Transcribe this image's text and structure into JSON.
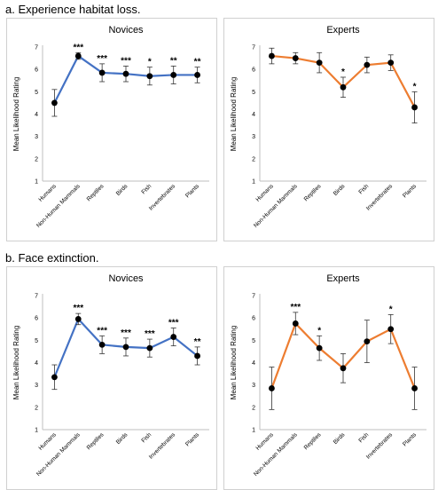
{
  "section_titles": [
    "a. Experience habitat loss.",
    "b. Face extinction."
  ],
  "chart_data": [
    {
      "type": "line",
      "title": "Novices",
      "ylabel": "Mean Likelihood Rating",
      "ylim": [
        1,
        7
      ],
      "yticks": [
        1,
        2,
        3,
        4,
        5,
        6,
        7
      ],
      "categories": [
        "Humans",
        "Non-Human Mammals",
        "Reptiles",
        "Birds",
        "Fish",
        "Invertebrates",
        "Plants"
      ],
      "values": [
        4.5,
        6.6,
        5.85,
        5.8,
        5.7,
        5.75,
        5.75
      ],
      "err_low": [
        3.9,
        6.45,
        5.45,
        5.45,
        5.3,
        5.35,
        5.4
      ],
      "err_high": [
        5.1,
        6.75,
        6.25,
        6.15,
        6.1,
        6.15,
        6.1
      ],
      "significance": [
        "",
        "***",
        "***",
        "***",
        "*",
        "**",
        "**"
      ],
      "line_color": "#4472C4"
    },
    {
      "type": "line",
      "title": "Experts",
      "ylabel": "Mean Likelihood Rating",
      "ylim": [
        1,
        7
      ],
      "yticks": [
        1,
        2,
        3,
        4,
        5,
        6,
        7
      ],
      "categories": [
        "Humans",
        "Non-Human Mammals",
        "Reptiles",
        "Birds",
        "Fish",
        "Invertebrates",
        "Plants"
      ],
      "values": [
        6.6,
        6.5,
        6.3,
        5.2,
        6.2,
        6.3,
        4.3
      ],
      "err_low": [
        6.25,
        6.25,
        5.85,
        4.75,
        5.85,
        5.95,
        3.6
      ],
      "err_high": [
        6.95,
        6.75,
        6.75,
        5.65,
        6.55,
        6.65,
        5.0
      ],
      "significance": [
        "",
        "",
        "",
        "*",
        "",
        "",
        "*"
      ],
      "line_color": "#ED7D31"
    },
    {
      "type": "line",
      "title": "Novices",
      "ylabel": "Mean Likelihood Rating",
      "ylim": [
        1,
        7
      ],
      "yticks": [
        1,
        2,
        3,
        4,
        5,
        6,
        7
      ],
      "categories": [
        "Humans",
        "Non-Human Mammals",
        "Reptiles",
        "Birds",
        "Fish",
        "Invertebrates",
        "Plants"
      ],
      "values": [
        3.35,
        5.95,
        4.8,
        4.7,
        4.65,
        5.15,
        4.3
      ],
      "err_low": [
        2.8,
        5.7,
        4.4,
        4.3,
        4.25,
        4.75,
        3.9
      ],
      "err_high": [
        3.9,
        6.2,
        5.2,
        5.1,
        5.05,
        5.55,
        4.7
      ],
      "significance": [
        "",
        "***",
        "***",
        "***",
        "***",
        "***",
        "**"
      ],
      "line_color": "#4472C4"
    },
    {
      "type": "line",
      "title": "Experts",
      "ylabel": "Mean Likelihood Rating",
      "ylim": [
        1,
        7
      ],
      "yticks": [
        1,
        2,
        3,
        4,
        5,
        6,
        7
      ],
      "categories": [
        "Humans",
        "Non-Human Mammals",
        "Reptiles",
        "Birds",
        "Fish",
        "Invertebrates",
        "Plants"
      ],
      "values": [
        2.85,
        5.75,
        4.65,
        3.75,
        4.95,
        5.5,
        2.85
      ],
      "err_low": [
        1.9,
        5.25,
        4.1,
        3.1,
        4.0,
        4.85,
        1.9
      ],
      "err_high": [
        3.8,
        6.25,
        5.2,
        4.4,
        5.9,
        6.15,
        3.8
      ],
      "significance": [
        "",
        "***",
        "*",
        "",
        "",
        "*",
        ""
      ],
      "line_color": "#ED7D31"
    }
  ]
}
